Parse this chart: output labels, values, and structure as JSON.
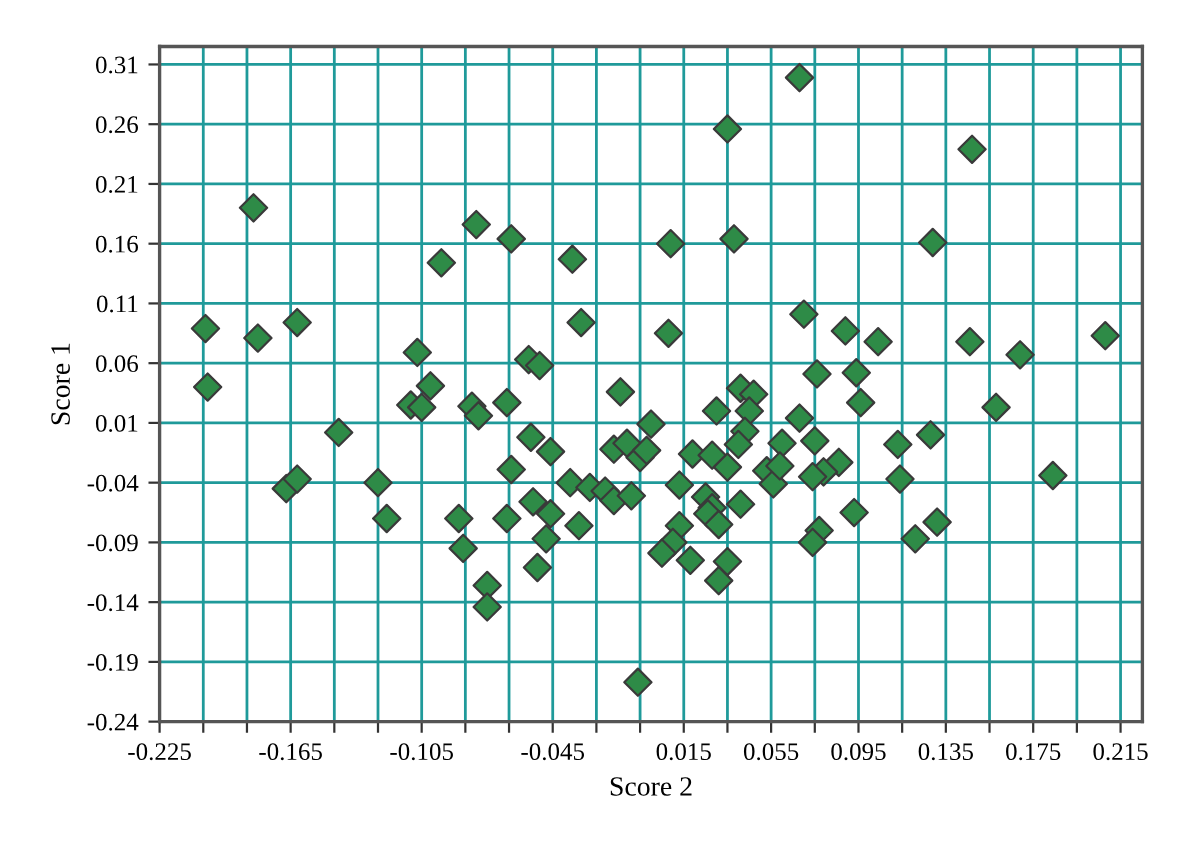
{
  "chart_data": {
    "type": "scatter",
    "xlabel": "Score 2",
    "ylabel": "Score 1",
    "xlim": [
      -0.225,
      0.225
    ],
    "ylim": [
      -0.24,
      0.325
    ],
    "xticks": [
      -0.225,
      {
        "value": -0.205,
        "label": null
      },
      {
        "value": -0.185,
        "label": null
      },
      -0.165,
      {
        "value": -0.145,
        "label": null
      },
      {
        "value": -0.125,
        "label": null
      },
      -0.105,
      {
        "value": -0.085,
        "label": null
      },
      {
        "value": -0.065,
        "label": null
      },
      -0.045,
      {
        "value": -0.025,
        "label": null
      },
      {
        "value": -0.005,
        "label": null
      },
      0.015,
      {
        "value": 0.035,
        "label": null
      },
      0.055,
      {
        "value": 0.075,
        "label": null
      },
      0.095,
      {
        "value": 0.115,
        "label": null
      },
      0.135,
      {
        "value": 0.155,
        "label": null
      },
      0.175,
      {
        "value": 0.195,
        "label": null
      },
      0.215
    ],
    "yticks": [
      -0.24,
      -0.19,
      -0.14,
      -0.09,
      -0.04,
      0.01,
      0.06,
      0.11,
      0.16,
      0.21,
      0.26,
      0.31
    ],
    "grid": true,
    "marker": "diamond",
    "series": [
      {
        "color": "#2e8b47",
        "x": [
          -0.182,
          -0.204,
          -0.18,
          -0.162,
          -0.203,
          -0.107,
          -0.101,
          -0.096,
          -0.08,
          0.068,
          0.035,
          -0.064,
          -0.036,
          0.009,
          0.038,
          -0.032,
          0.008,
          0.07,
          -0.056,
          -0.051,
          0.076,
          -0.014,
          0.041,
          0.047,
          0.147,
          0.129,
          0.089,
          0.104,
          0.146,
          0.169,
          0.208,
          0.094,
          0.096,
          0.158,
          0.068,
          0.075,
          0.113,
          0.128,
          0.086,
          0.079,
          0.074,
          0.114,
          0.184,
          0.093,
          0.131,
          0.121,
          0.077,
          0.074,
          -0.082,
          -0.079,
          -0.066,
          0.03,
          0.045,
          0.043,
          0.0,
          -0.055,
          -0.046,
          -0.017,
          -0.011,
          -0.005,
          -0.002,
          0.019,
          0.028,
          0.04,
          0.035,
          0.06,
          0.053,
          0.056,
          0.059,
          -0.064,
          -0.037,
          -0.028,
          -0.021,
          -0.017,
          -0.009,
          0.013,
          0.025,
          0.028,
          0.026,
          0.031,
          0.041,
          -0.054,
          -0.046,
          -0.066,
          -0.033,
          -0.048,
          -0.052,
          0.013,
          0.01,
          0.005,
          0.018,
          0.035,
          0.031,
          -0.006,
          -0.075,
          -0.075,
          -0.11,
          -0.105,
          -0.143,
          -0.167,
          -0.162,
          -0.125,
          -0.121,
          -0.088,
          -0.086
        ],
        "values": [
          0.19,
          0.089,
          0.081,
          0.094,
          0.04,
          0.069,
          0.041,
          0.144,
          0.176,
          0.299,
          0.256,
          0.164,
          0.147,
          0.16,
          0.164,
          0.094,
          0.085,
          0.101,
          0.063,
          0.058,
          0.051,
          0.036,
          0.039,
          0.034,
          0.239,
          0.161,
          0.087,
          0.078,
          0.078,
          0.067,
          0.083,
          0.052,
          0.027,
          0.023,
          0.014,
          -0.005,
          -0.008,
          0.0,
          -0.023,
          -0.031,
          -0.035,
          -0.037,
          -0.034,
          -0.065,
          -0.073,
          -0.087,
          -0.08,
          -0.09,
          0.024,
          0.016,
          0.027,
          0.02,
          0.02,
          0.003,
          0.009,
          -0.002,
          -0.014,
          -0.012,
          -0.007,
          -0.019,
          -0.013,
          -0.016,
          -0.017,
          -0.008,
          -0.027,
          -0.007,
          -0.03,
          -0.041,
          -0.026,
          -0.029,
          -0.04,
          -0.044,
          -0.047,
          -0.055,
          -0.051,
          -0.042,
          -0.052,
          -0.061,
          -0.066,
          -0.075,
          -0.058,
          -0.056,
          -0.066,
          -0.07,
          -0.076,
          -0.087,
          -0.111,
          -0.076,
          -0.09,
          -0.099,
          -0.105,
          -0.106,
          -0.122,
          -0.207,
          -0.126,
          -0.144,
          0.025,
          0.023,
          0.002,
          -0.045,
          -0.037,
          -0.04,
          -0.07,
          -0.07,
          -0.095
        ]
      }
    ]
  }
}
